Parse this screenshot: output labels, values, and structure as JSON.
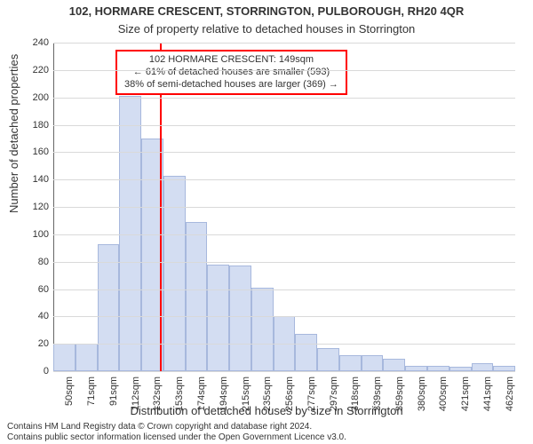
{
  "title": "102, HORMARE CRESCENT, STORRINGTON, PULBOROUGH, RH20 4QR",
  "subtitle": "Size of property relative to detached houses in Storrington",
  "yaxis_label": "Number of detached properties",
  "xaxis_label": "Distribution of detached houses by size in Storrington",
  "footer_line1": "Contains HM Land Registry data © Crown copyright and database right 2024.",
  "footer_line2": "Contains public sector information licensed under the Open Government Licence v3.0.",
  "chart": {
    "type": "bar",
    "ylim": [
      0,
      240
    ],
    "ytick_step": 20,
    "background_color": "#ffffff",
    "grid_color": "#d9d9d9",
    "bar_fill": "#d3ddf2",
    "bar_border": "#a7b8dd",
    "axis_color": "#666666",
    "title_fontsize": 13,
    "subtitle_fontsize": 13,
    "axis_label_fontsize": 13,
    "tick_fontsize": 11,
    "categories": [
      "50sqm",
      "71sqm",
      "91sqm",
      "112sqm",
      "132sqm",
      "153sqm",
      "174sqm",
      "194sqm",
      "215sqm",
      "235sqm",
      "256sqm",
      "277sqm",
      "297sqm",
      "318sqm",
      "339sqm",
      "359sqm",
      "380sqm",
      "400sqm",
      "421sqm",
      "441sqm",
      "462sqm"
    ],
    "values": [
      20,
      20,
      93,
      201,
      170,
      143,
      109,
      78,
      77,
      61,
      40,
      27,
      17,
      12,
      12,
      9,
      4,
      4,
      3,
      6,
      4
    ]
  },
  "marker": {
    "color": "#ff0000",
    "x_category_index": 4.85,
    "line_width": 2
  },
  "annotation": {
    "border_color": "#ff0000",
    "line1": "102 HORMARE CRESCENT: 149sqm",
    "line2": "← 61% of detached houses are smaller (593)",
    "line3": "38% of semi-detached houses are larger (369) →",
    "fontsize": 11
  }
}
